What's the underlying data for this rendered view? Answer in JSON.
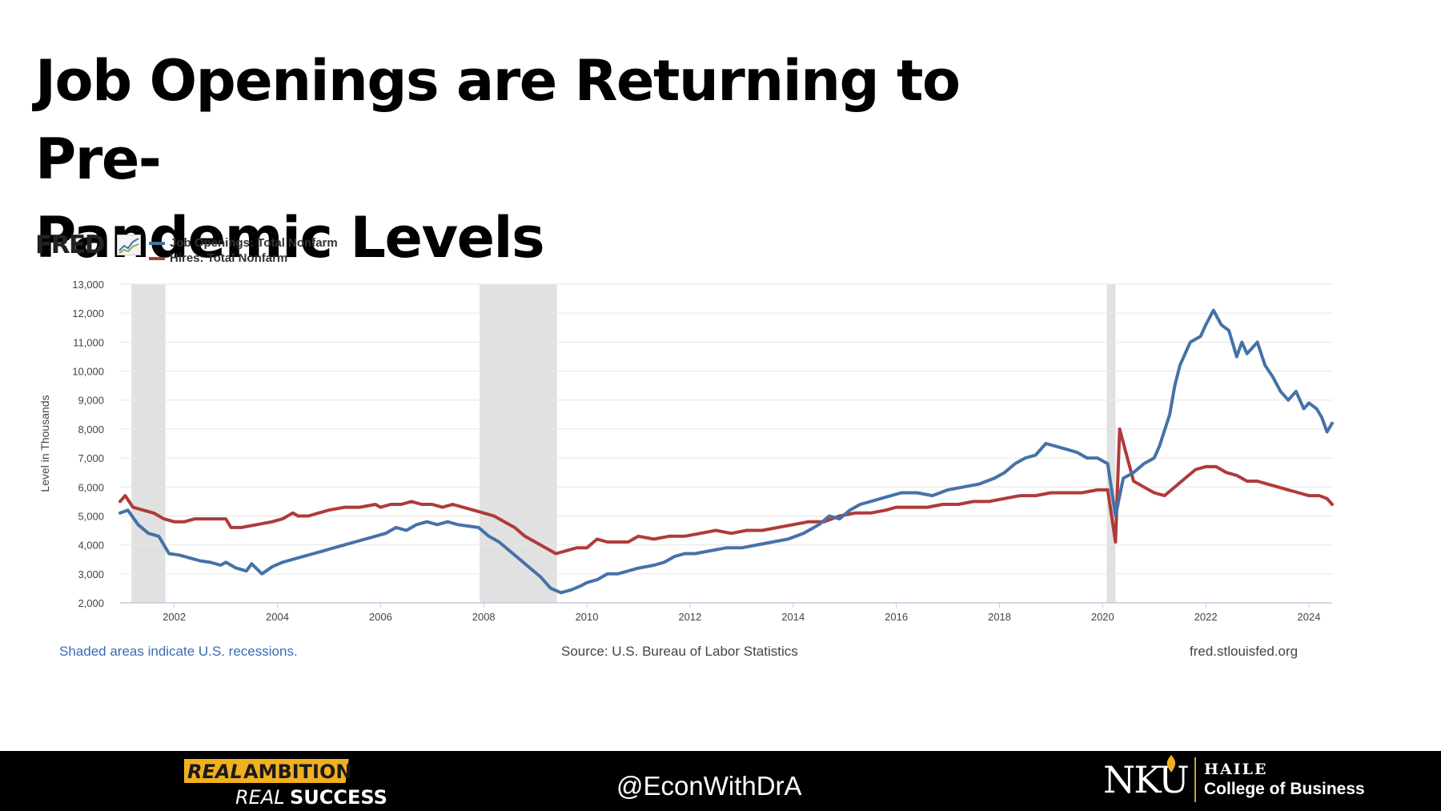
{
  "slide": {
    "title_line1": "Job Openings are Returning to Pre-",
    "title_line2": "Pandemic Levels"
  },
  "fred": {
    "logo_text": "FRED",
    "logo_icon": "line-chart-icon",
    "footnote_left": "Shaded areas indicate U.S. recessions.",
    "footnote_source": "Source: U.S. Bureau of Labor Statistics",
    "footnote_site": "fred.stlouisfed.org"
  },
  "footer": {
    "slogan_line1_a": "REAL",
    "slogan_line1_b": "AMBITION",
    "slogan_line2_a": "REAL",
    "slogan_line2_b": "SUCCESS",
    "handle": "@EconWithDrA",
    "logo_text": "NKU",
    "college_line1": "HAILE",
    "college_line2": "College of Business",
    "colors": {
      "bar": "#000000",
      "gold": "#f2b01e",
      "text": "#ffffff"
    }
  },
  "chart_data": {
    "type": "line",
    "title": "",
    "xlabel": "",
    "ylabel": "Level in Thousands",
    "xlim": [
      2000.95,
      2024.45
    ],
    "ylim": [
      2000,
      13000
    ],
    "yticks": [
      2000,
      3000,
      4000,
      5000,
      6000,
      7000,
      8000,
      9000,
      10000,
      11000,
      12000,
      13000
    ],
    "ytick_labels": [
      "2,000",
      "3,000",
      "4,000",
      "5,000",
      "6,000",
      "7,000",
      "8,000",
      "9,000",
      "10,000",
      "11,000",
      "12,000",
      "13,000"
    ],
    "xticks": [
      2002,
      2004,
      2006,
      2008,
      2010,
      2012,
      2014,
      2016,
      2018,
      2020,
      2022,
      2024
    ],
    "xtick_labels": [
      "2002",
      "2004",
      "2006",
      "2008",
      "2010",
      "2012",
      "2014",
      "2016",
      "2018",
      "2020",
      "2022",
      "2024"
    ],
    "grid": true,
    "legend": "top-left",
    "recessions": [
      [
        2001.17,
        2001.83
      ],
      [
        2007.92,
        2009.42
      ],
      [
        2020.08,
        2020.25
      ]
    ],
    "recession_color": "#e1e1e1",
    "series": [
      {
        "name": "Job Openings: Total Nonfarm",
        "color": "#4572a7",
        "x": [
          2000.95,
          2001.1,
          2001.3,
          2001.5,
          2001.7,
          2001.9,
          2002.1,
          2002.3,
          2002.5,
          2002.7,
          2002.9,
          2003.0,
          2003.2,
          2003.4,
          2003.5,
          2003.7,
          2003.9,
          2004.1,
          2004.3,
          2004.5,
          2004.7,
          2004.9,
          2005.0,
          2005.3,
          2005.5,
          2005.7,
          2005.9,
          2006.1,
          2006.3,
          2006.5,
          2006.7,
          2006.9,
          2007.1,
          2007.3,
          2007.5,
          2007.7,
          2007.9,
          2008.1,
          2008.3,
          2008.5,
          2008.7,
          2008.9,
          2009.1,
          2009.3,
          2009.5,
          2009.7,
          2009.9,
          2010.0,
          2010.2,
          2010.4,
          2010.6,
          2010.8,
          2011.0,
          2011.3,
          2011.5,
          2011.7,
          2011.9,
          2012.1,
          2012.4,
          2012.7,
          2013.0,
          2013.3,
          2013.6,
          2013.9,
          2014.2,
          2014.5,
          2014.7,
          2014.9,
          2015.1,
          2015.3,
          2015.5,
          2015.7,
          2015.9,
          2016.1,
          2016.4,
          2016.7,
          2017.0,
          2017.3,
          2017.6,
          2017.9,
          2018.1,
          2018.3,
          2018.5,
          2018.7,
          2018.9,
          2019.1,
          2019.3,
          2019.5,
          2019.7,
          2019.9,
          2020.1,
          2020.25,
          2020.4,
          2020.6,
          2020.8,
          2021.0,
          2021.1,
          2021.3,
          2021.4,
          2021.5,
          2021.7,
          2021.9,
          2022.0,
          2022.15,
          2022.3,
          2022.45,
          2022.6,
          2022.7,
          2022.8,
          2023.0,
          2023.15,
          2023.3,
          2023.45,
          2023.6,
          2023.75,
          2023.9,
          2024.0,
          2024.15,
          2024.25,
          2024.35,
          2024.45
        ],
        "values": [
          5100,
          5200,
          4700,
          4400,
          4300,
          3700,
          3650,
          3550,
          3450,
          3400,
          3300,
          3400,
          3200,
          3100,
          3350,
          3000,
          3250,
          3400,
          3500,
          3600,
          3700,
          3800,
          3850,
          4000,
          4100,
          4200,
          4300,
          4400,
          4600,
          4500,
          4700,
          4800,
          4700,
          4800,
          4700,
          4650,
          4600,
          4300,
          4100,
          3800,
          3500,
          3200,
          2900,
          2500,
          2350,
          2450,
          2600,
          2700,
          2800,
          3000,
          3000,
          3100,
          3200,
          3300,
          3400,
          3600,
          3700,
          3700,
          3800,
          3900,
          3900,
          4000,
          4100,
          4200,
          4400,
          4700,
          5000,
          4900,
          5200,
          5400,
          5500,
          5600,
          5700,
          5800,
          5800,
          5700,
          5900,
          6000,
          6100,
          6300,
          6500,
          6800,
          7000,
          7100,
          7500,
          7400,
          7300,
          7200,
          7000,
          7000,
          6800,
          5000,
          6300,
          6500,
          6800,
          7000,
          7400,
          8500,
          9500,
          10200,
          11000,
          11200,
          11600,
          12100,
          11600,
          11400,
          10500,
          11000,
          10600,
          11000,
          10200,
          9800,
          9300,
          9000,
          9300,
          8700,
          8900,
          8700,
          8400,
          7900,
          8200
        ]
      },
      {
        "name": "Hires: Total Nonfarm",
        "color": "#b03a3a",
        "x": [
          2000.95,
          2001.05,
          2001.2,
          2001.4,
          2001.6,
          2001.8,
          2002.0,
          2002.2,
          2002.4,
          2002.6,
          2002.8,
          2003.0,
          2003.1,
          2003.3,
          2003.6,
          2003.9,
          2004.1,
          2004.3,
          2004.4,
          2004.6,
          2004.8,
          2005.0,
          2005.3,
          2005.6,
          2005.9,
          2006.0,
          2006.2,
          2006.4,
          2006.6,
          2006.8,
          2007.0,
          2007.2,
          2007.4,
          2007.6,
          2007.8,
          2008.0,
          2008.2,
          2008.4,
          2008.6,
          2008.8,
          2009.0,
          2009.2,
          2009.4,
          2009.6,
          2009.8,
          2010.0,
          2010.2,
          2010.4,
          2010.6,
          2010.8,
          2011.0,
          2011.3,
          2011.6,
          2011.9,
          2012.2,
          2012.5,
          2012.8,
          2013.1,
          2013.4,
          2013.7,
          2014.0,
          2014.3,
          2014.6,
          2014.9,
          2015.2,
          2015.5,
          2015.8,
          2016.0,
          2016.3,
          2016.6,
          2016.9,
          2017.2,
          2017.5,
          2017.8,
          2018.1,
          2018.4,
          2018.7,
          2019.0,
          2019.3,
          2019.6,
          2019.9,
          2020.1,
          2020.25,
          2020.33,
          2020.45,
          2020.6,
          2020.8,
          2021.0,
          2021.2,
          2021.4,
          2021.6,
          2021.8,
          2022.0,
          2022.2,
          2022.4,
          2022.6,
          2022.8,
          2023.0,
          2023.2,
          2023.4,
          2023.6,
          2023.8,
          2024.0,
          2024.2,
          2024.35,
          2024.45
        ],
        "values": [
          5500,
          5700,
          5300,
          5200,
          5100,
          4900,
          4800,
          4800,
          4900,
          4900,
          4900,
          4900,
          4600,
          4600,
          4700,
          4800,
          4900,
          5100,
          5000,
          5000,
          5100,
          5200,
          5300,
          5300,
          5400,
          5300,
          5400,
          5400,
          5500,
          5400,
          5400,
          5300,
          5400,
          5300,
          5200,
          5100,
          5000,
          4800,
          4600,
          4300,
          4100,
          3900,
          3700,
          3800,
          3900,
          3900,
          4200,
          4100,
          4100,
          4100,
          4300,
          4200,
          4300,
          4300,
          4400,
          4500,
          4400,
          4500,
          4500,
          4600,
          4700,
          4800,
          4800,
          5000,
          5100,
          5100,
          5200,
          5300,
          5300,
          5300,
          5400,
          5400,
          5500,
          5500,
          5600,
          5700,
          5700,
          5800,
          5800,
          5800,
          5900,
          5900,
          4100,
          8000,
          7200,
          6200,
          6000,
          5800,
          5700,
          6000,
          6300,
          6600,
          6700,
          6700,
          6500,
          6400,
          6200,
          6200,
          6100,
          6000,
          5900,
          5800,
          5700,
          5700,
          5600,
          5400
        ]
      }
    ]
  }
}
